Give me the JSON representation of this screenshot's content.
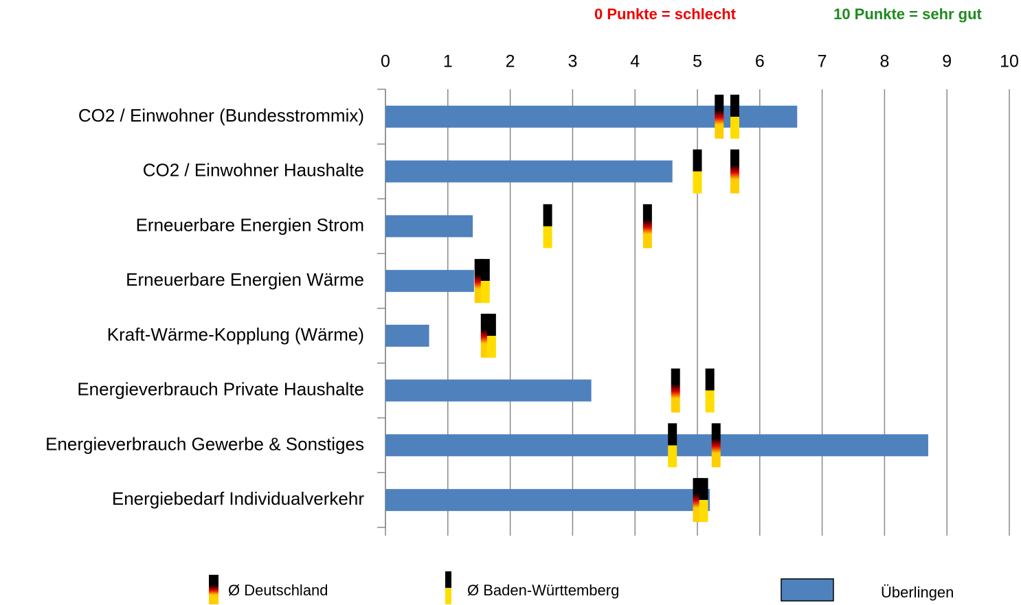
{
  "chart_data": {
    "type": "bar",
    "orientation": "horizontal",
    "header_left": "0 Punkte = schlecht",
    "header_left_color": "#ee0000",
    "header_right": "10 Punkte = sehr gut",
    "header_right_color": "#1e8a1e",
    "categories": [
      "CO2 / Einwohner (Bundesstrommix)",
      "CO2 / Einwohner Haushalte",
      "Erneuerbare Energien Strom",
      "Erneuerbare Energien Wärme",
      "Kraft-Wärme-Kopplung (Wärme)",
      "Energieverbrauch Private Haushalte",
      "Energieverbrauch Gewerbe & Sonstiges",
      "Energiebedarf Individualverkehr"
    ],
    "series": [
      {
        "name": "Ø Deutschland",
        "style": "marker",
        "colors": [
          "#000000",
          "#dd0000",
          "#ffce00"
        ],
        "values": [
          5.35,
          5.6,
          4.2,
          1.5,
          1.6,
          4.65,
          5.3,
          5.0
        ]
      },
      {
        "name": "Ø Baden-Württemberg",
        "style": "marker",
        "colors": [
          "#000000",
          "#ffdd00"
        ],
        "values": [
          5.6,
          5.0,
          2.6,
          1.6,
          1.7,
          5.2,
          4.6,
          5.1
        ]
      },
      {
        "name": "Überlingen",
        "style": "bar",
        "color": "#4f81bd",
        "values": [
          6.6,
          4.6,
          1.4,
          1.42,
          0.7,
          3.3,
          8.7,
          5.2
        ]
      }
    ],
    "xlim": [
      0,
      10
    ],
    "xticks": [
      0,
      1,
      2,
      3,
      4,
      5,
      6,
      7,
      8,
      9,
      10
    ],
    "grid": true
  }
}
